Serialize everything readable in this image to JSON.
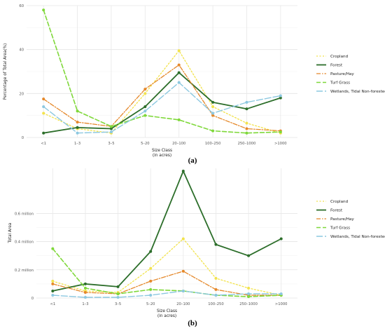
{
  "chart_data": [
    {
      "type": "line",
      "panel_label": "(a)",
      "ylabel": "Percentage of Total Area(%)",
      "xlabel": "Size Class\n(in acres)",
      "ylim": [
        0,
        60
      ],
      "yticks": [
        0,
        20,
        40,
        60
      ],
      "ytick_labels": [
        "0",
        "20",
        "40",
        "60"
      ],
      "categories": [
        "<1",
        "1–3",
        "3–5",
        "5–20",
        "20–100",
        "100–250",
        "250–1000",
        ">1000"
      ],
      "grid": true,
      "legend_position": "right",
      "series": [
        {
          "name": "Cropland",
          "color": "#f2e34c",
          "dash": "2,2.5",
          "width": 1.3,
          "values": [
            11,
            4,
            2,
            20,
            39.5,
            14,
            6.5,
            2
          ]
        },
        {
          "name": "Forest",
          "color": "#2c6e2a",
          "dash": "",
          "width": 1.8,
          "values": [
            2,
            4.5,
            4,
            14,
            29.5,
            16,
            13,
            18
          ]
        },
        {
          "name": "Pasture/Hay",
          "color": "#e5882a",
          "dash": "6,2,1.5,2",
          "width": 1.3,
          "values": [
            17.5,
            7,
            5,
            22,
            33,
            10,
            4,
            3
          ]
        },
        {
          "name": "Turf Grass",
          "color": "#7fd83a",
          "dash": "6,3",
          "width": 1.6,
          "values": [
            58,
            12,
            5,
            10,
            8,
            3,
            2,
            2.5
          ]
        },
        {
          "name": "Wetlands, Tidal Non-forested",
          "color": "#8cc8e0",
          "dash": "9,3",
          "width": 1.4,
          "values": [
            14,
            2,
            2.5,
            12,
            25,
            11,
            16,
            19
          ]
        }
      ]
    },
    {
      "type": "line",
      "panel_label": "(b)",
      "ylabel": "Total Area",
      "xlabel": "Size Class\n(in acres)",
      "ylim": [
        0,
        0.92
      ],
      "yticks": [
        0,
        0.2,
        0.4,
        0.6
      ],
      "ytick_labels": [
        "0",
        "0.2 million",
        "0.4 million",
        "0.6 million"
      ],
      "categories": [
        "<1",
        "1–3",
        "3–5",
        "5–20",
        "20–100",
        "100–250",
        "250–1000",
        ">1000"
      ],
      "grid": true,
      "legend_position": "right",
      "series": [
        {
          "name": "Cropland",
          "color": "#f2e34c",
          "dash": "2,2.5",
          "width": 1.3,
          "values": [
            0.12,
            0.05,
            0.04,
            0.21,
            0.42,
            0.14,
            0.07,
            0.02
          ]
        },
        {
          "name": "Forest",
          "color": "#2c6e2a",
          "dash": "",
          "width": 1.8,
          "values": [
            0.05,
            0.1,
            0.08,
            0.33,
            0.9,
            0.38,
            0.3,
            0.42
          ]
        },
        {
          "name": "Pasture/Hay",
          "color": "#e5882a",
          "dash": "6,2,1.5,2",
          "width": 1.3,
          "values": [
            0.1,
            0.04,
            0.03,
            0.12,
            0.19,
            0.06,
            0.02,
            0.02
          ]
        },
        {
          "name": "Turf Grass",
          "color": "#7fd83a",
          "dash": "6,3",
          "width": 1.6,
          "values": [
            0.35,
            0.07,
            0.03,
            0.06,
            0.05,
            0.02,
            0.01,
            0.02
          ]
        },
        {
          "name": "Wetlands, Tidal Non-forested",
          "color": "#8cc8e0",
          "dash": "9,3",
          "width": 1.4,
          "values": [
            0.02,
            0.005,
            0.005,
            0.02,
            0.05,
            0.02,
            0.03,
            0.03
          ]
        }
      ]
    }
  ]
}
